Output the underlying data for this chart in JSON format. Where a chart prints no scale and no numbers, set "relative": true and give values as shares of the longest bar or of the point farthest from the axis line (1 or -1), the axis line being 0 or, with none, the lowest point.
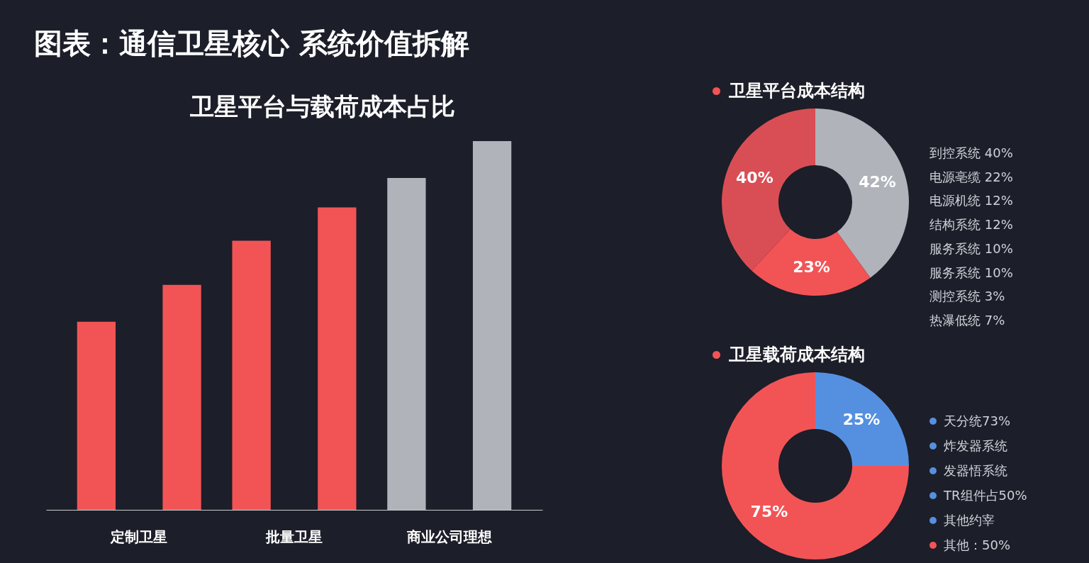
{
  "chart_data": [
    {
      "type": "bar",
      "title": "图表：通信卫星核心 系统价值拆解",
      "subtitle": "卫星平台与载荷成本占比",
      "relative": true,
      "categories": [
        "定制卫星",
        "批量卫星",
        "商业公司理想"
      ],
      "series": [
        {
          "colors": [
            "#f25456",
            "#f25456",
            "#b0b3ba"
          ],
          "values": [
            0.51,
            0.73,
            0.9
          ]
        },
        {
          "colors": [
            "#f25456",
            "#f25456",
            "#b0b3ba"
          ],
          "values": [
            0.61,
            0.82,
            1
          ]
        }
      ]
    },
    {
      "type": "donut",
      "title": "卫星平台成本结构",
      "categories": [
        null,
        null,
        null
      ],
      "values": [
        42,
        23,
        40
      ],
      "value_labels": [
        "42%",
        "23%",
        "40%"
      ],
      "colors": [
        "#b0b3ba",
        "#f25456",
        "#d94e54"
      ],
      "annotations": [
        "到控系统 40%",
        "电源亳缆 22%",
        "电源机统 12%",
        "结构系统 12%",
        "服务系统 10%",
        "服务系统 10%",
        "测控系统 3%",
        "热瀑低统 7%"
      ]
    },
    {
      "type": "donut",
      "title": "卫星载荷成本结构",
      "categories": [
        null,
        null
      ],
      "values": [
        25,
        75
      ],
      "value_labels": [
        "25%",
        "75%"
      ],
      "colors": [
        "#5590e0",
        "#f25456"
      ],
      "annotations": [
        "天分统73%",
        "炸发器系统",
        "发器悟系统",
        "TR组件占50%",
        "其他约宰",
        "其他：50%"
      ]
    }
  ]
}
